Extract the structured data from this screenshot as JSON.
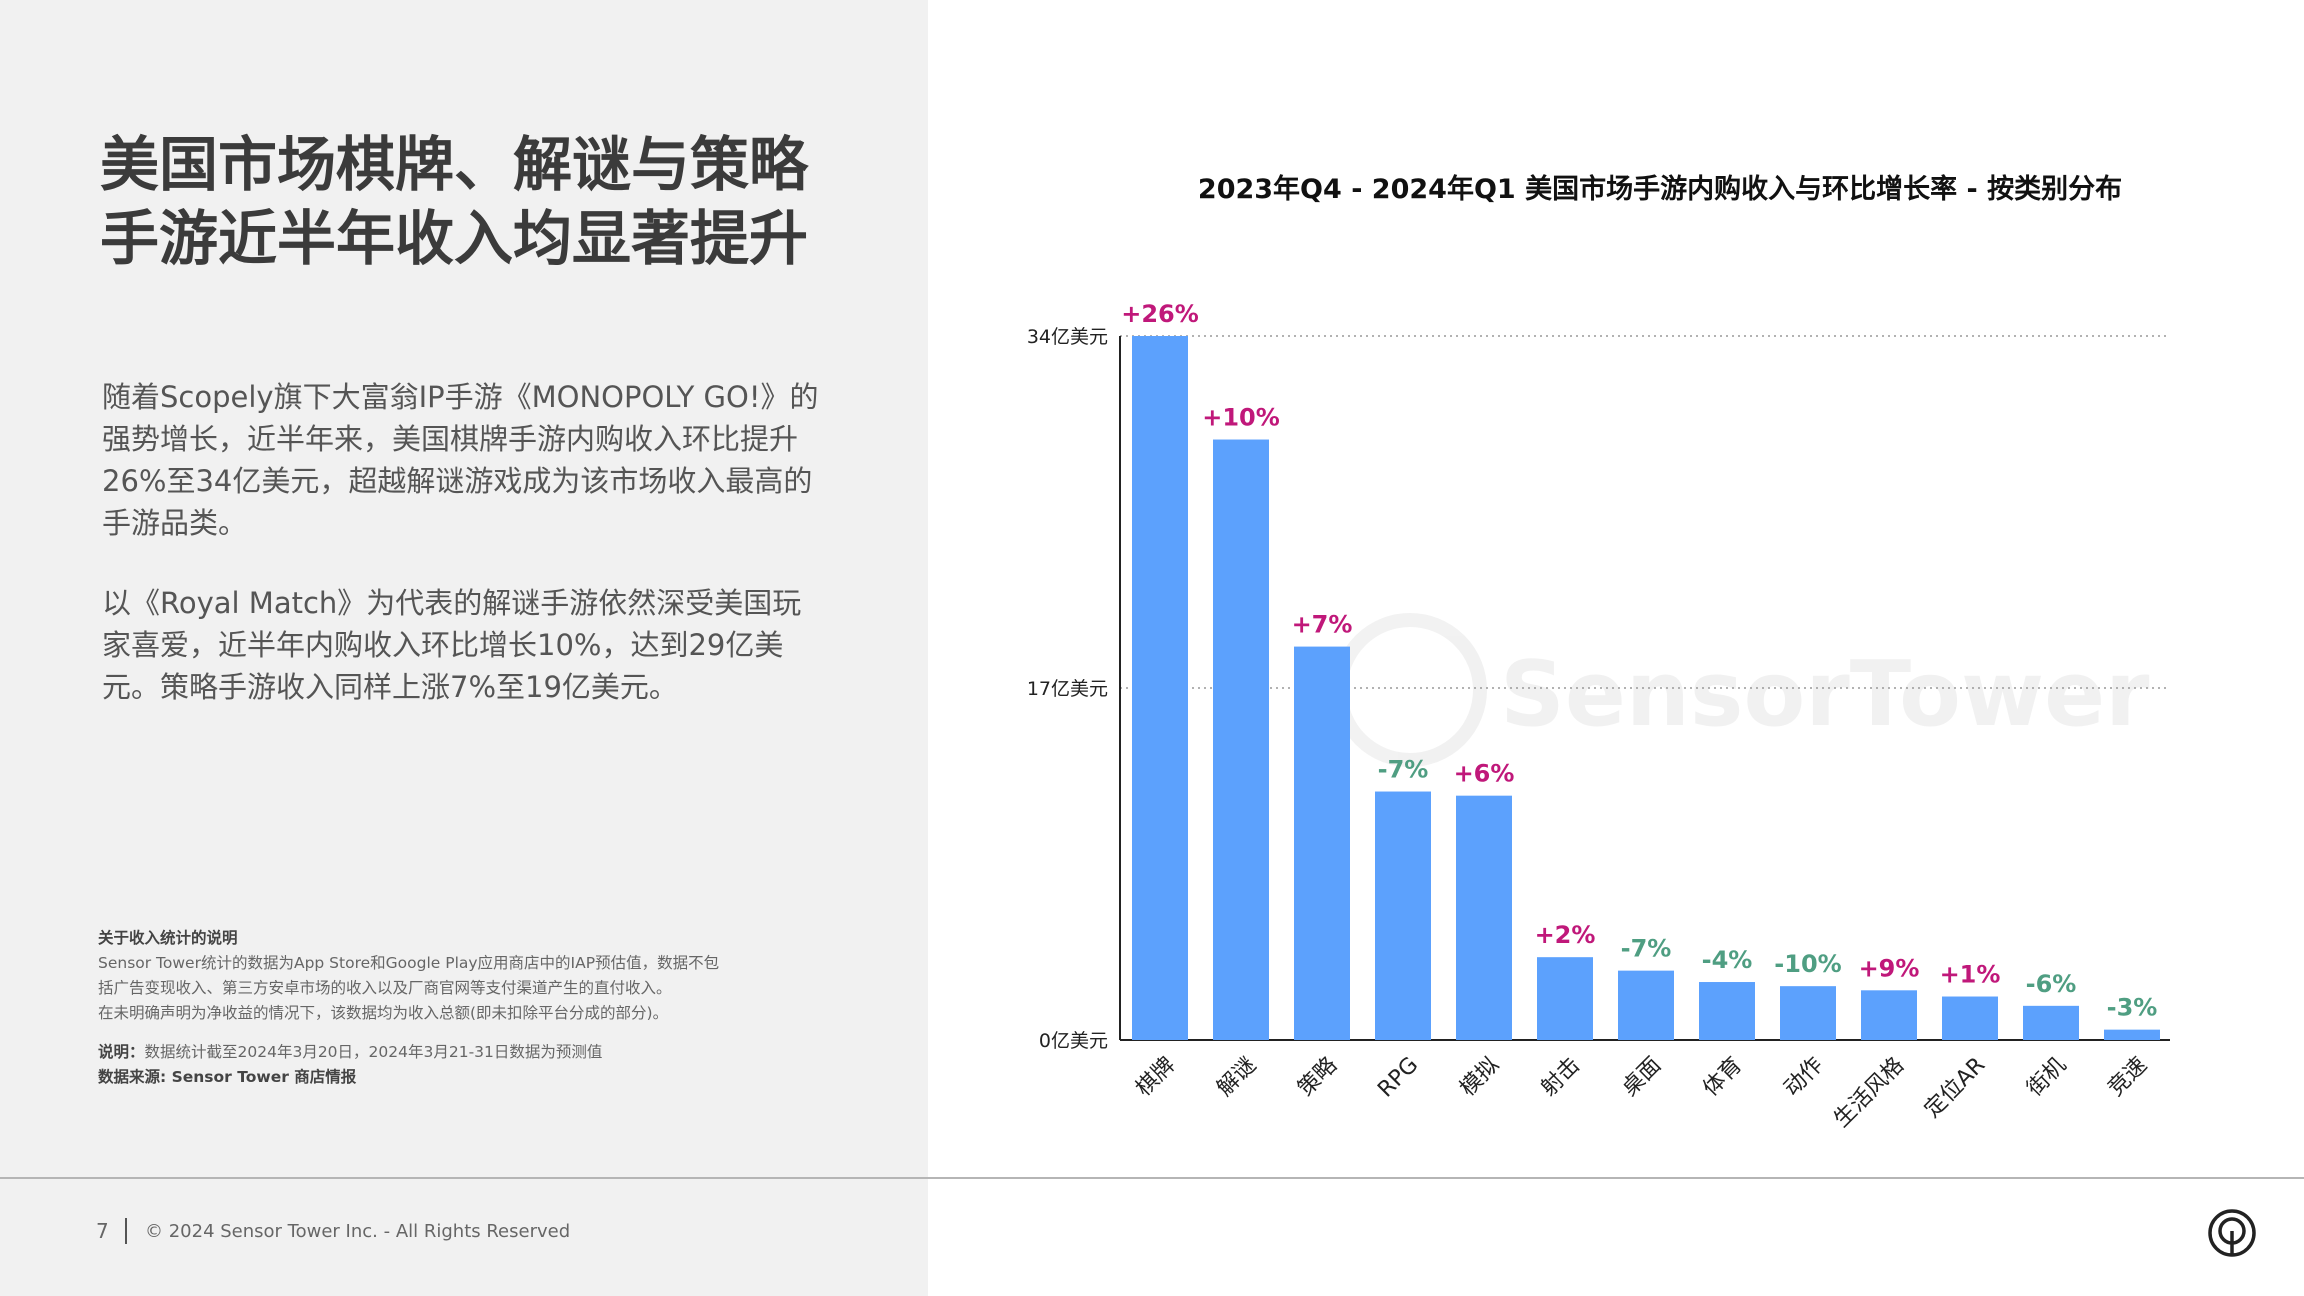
{
  "title_lines": [
    "美国市场棋牌、解谜与策略",
    "手游近半年收入均显著提升"
  ],
  "para1": "随着Scopely旗下大富翁IP手游《MONOPOLY GO!》的强势增长，近半年来，美国棋牌手游内购收入环比提升26%至34亿美元，超越解谜游戏成为该市场收入最高的手游品类。",
  "para2": "以《Royal Match》为代表的解谜手游依然深受美国玩家喜爱，近半年内购收入环比增长10%，达到29亿美元。策略手游收入同样上涨7%至19亿美元。",
  "notes": {
    "heading": "关于收入统计的说明",
    "lines": [
      "Sensor Tower统计的数据为App Store和Google Play应用商店中的IAP预估值，数据不包",
      "括广告变现收入、第三方安卓市场的收入以及厂商官网等支付渠道产生的直付收入。",
      "在未明确声明为净收益的情况下，该数据均为收入总额(即未扣除平台分成的部分)。"
    ],
    "note_label": "说明：",
    "note_text": "数据统计截至2024年3月20日，2024年3月21-31日数据为预测值",
    "source": "数据来源: Sensor Tower 商店情报"
  },
  "footer": {
    "page": "7",
    "copyright": "© 2024 Sensor Tower Inc. - All Rights Reserved"
  },
  "watermark": "SensorTower",
  "colors": {
    "bar": "#5ca1fd",
    "positive": "#c0187a",
    "negative": "#4f9e82",
    "left_bg": "#f1f1f1"
  },
  "chart_data": {
    "type": "bar",
    "title": "2023年Q4 - 2024年Q1 美国市场手游内购收入与环比增长率 - 按类别分布",
    "categories": [
      "棋牌",
      "解谜",
      "策略",
      "RPG",
      "模拟",
      "射击",
      "桌面",
      "体育",
      "动作",
      "生活风格",
      "定位AR",
      "街机",
      "竞速"
    ],
    "values": [
      34,
      29,
      19,
      12,
      11.8,
      4,
      3.35,
      2.8,
      2.6,
      2.4,
      2.1,
      1.65,
      0.5
    ],
    "growth_labels": [
      "+26%",
      "+10%",
      "+7%",
      "-7%",
      "+6%",
      "+2%",
      "-7%",
      "-4%",
      "-10%",
      "+9%",
      "+1%",
      "-6%",
      "-3%"
    ],
    "ytick_values": [
      0,
      17,
      34
    ],
    "ytick_labels": [
      "0亿美元",
      "17亿美元",
      "34亿美元"
    ],
    "ylim": [
      0,
      34
    ],
    "grid": "dotted"
  }
}
